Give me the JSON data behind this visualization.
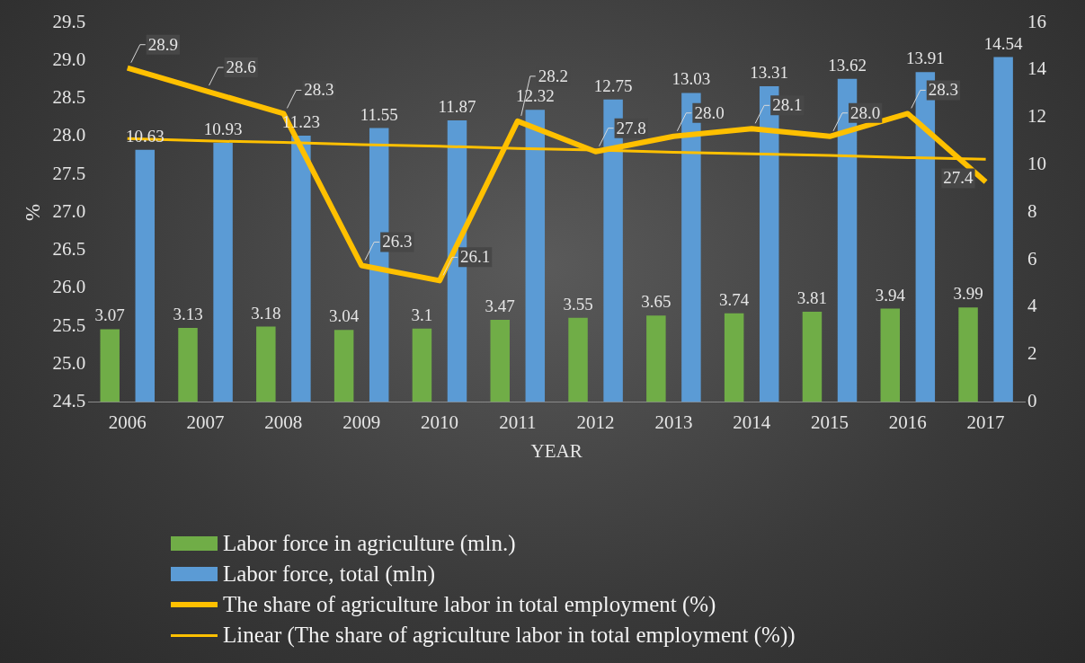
{
  "chart_data": {
    "type": "bar",
    "xlabel": "YEAR",
    "ylabel": "%",
    "categories": [
      "2006",
      "2007",
      "2008",
      "2009",
      "2010",
      "2011",
      "2012",
      "2013",
      "2014",
      "2015",
      "2016",
      "2017"
    ],
    "series": [
      {
        "name": "Labor force in agriculture (mln.)",
        "color": "#70ad47",
        "axis": "y2",
        "values": [
          3.07,
          3.13,
          3.18,
          3.04,
          3.1,
          3.47,
          3.55,
          3.65,
          3.74,
          3.81,
          3.94,
          3.99
        ],
        "value_labels": [
          "3.07",
          "3.13",
          "3.18",
          "3.04",
          "3.1",
          "3.47",
          "3.55",
          "3.65",
          "3.74",
          "3.81",
          "3.94",
          "3.99"
        ]
      },
      {
        "name": "Labor force, total (mln)",
        "color": "#5b9bd5",
        "axis": "y2",
        "values": [
          10.63,
          10.93,
          11.23,
          11.55,
          11.87,
          12.32,
          12.75,
          13.03,
          13.31,
          13.62,
          13.91,
          14.54
        ],
        "value_labels": [
          "10.63",
          "10.93",
          "11.23",
          "11.55",
          "11.87",
          "12.32",
          "12.75",
          "13.03",
          "13.31",
          "13.62",
          "13.91",
          "14.54"
        ]
      },
      {
        "name": "The share of agriculture labor in total employment (%)",
        "type": "line",
        "color": "#ffc000",
        "values": [
          28.9,
          28.6,
          28.3,
          26.3,
          26.1,
          28.2,
          27.8,
          28.0,
          28.1,
          28.0,
          28.3,
          27.4
        ],
        "value_labels": [
          "28.9",
          "28.6",
          "28.3",
          "26.3",
          "26.1",
          "28.2",
          "27.8",
          "28.0",
          "28.1",
          "28.0",
          "28.3",
          "27.4"
        ]
      },
      {
        "name": "Linear (The share of agriculture labor in total employment (%))",
        "type": "line",
        "color": "#ffc000",
        "values": [
          27.97,
          27.94,
          27.92,
          27.89,
          27.87,
          27.84,
          27.82,
          27.79,
          27.77,
          27.75,
          27.72,
          27.7
        ]
      }
    ],
    "ylim": [
      24.5,
      29.5
    ],
    "yticks": [
      24.5,
      {
        "value": 25,
        "label": "25.0"
      },
      25.5,
      {
        "value": 26,
        "label": "26.0"
      },
      26.5,
      {
        "value": 27,
        "label": "27.0"
      },
      27.5,
      {
        "value": 28,
        "label": "28.0"
      },
      28.5,
      {
        "value": 29,
        "label": "29.0"
      },
      29.5
    ],
    "y2lim": [
      0,
      16
    ],
    "y2ticks": [
      0,
      2,
      4,
      6,
      8,
      10,
      12,
      14,
      16
    ],
    "grid": false,
    "legend": "bottom",
    "marker": "none"
  }
}
